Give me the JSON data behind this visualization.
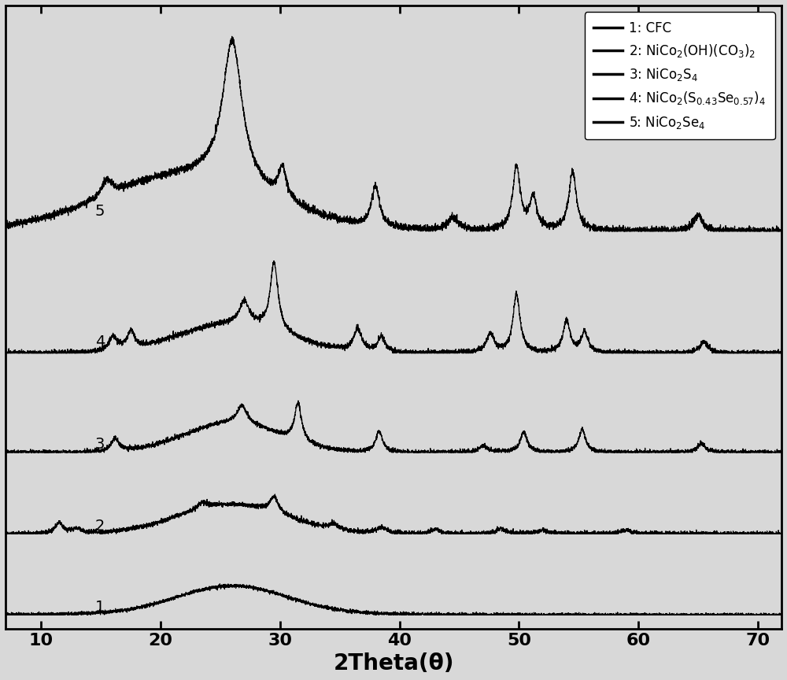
{
  "xlabel": "2Theta(θ)",
  "xlabel_fontsize": 20,
  "xticks": [
    10,
    20,
    30,
    40,
    50,
    60,
    70
  ],
  "xlim": [
    7,
    72
  ],
  "background_color": "#e8e8e8",
  "line_color": "#000000",
  "legend_labels": [
    "1: CFC",
    "2: NiCo$_2$(OH)(CO$_3$)$_2$",
    "3: NiCo$_2$S$_4$",
    "4: NiCo$_2$(S$_{0.43}$Se$_{0.57}$)$_4$",
    "5: NiCo$_2$Se$_4$"
  ],
  "curve_labels": [
    "1",
    "2",
    "3",
    "4",
    "5"
  ],
  "tick_fontsize": 16,
  "offsets": [
    0.0,
    1.8,
    3.6,
    5.8,
    8.5
  ]
}
